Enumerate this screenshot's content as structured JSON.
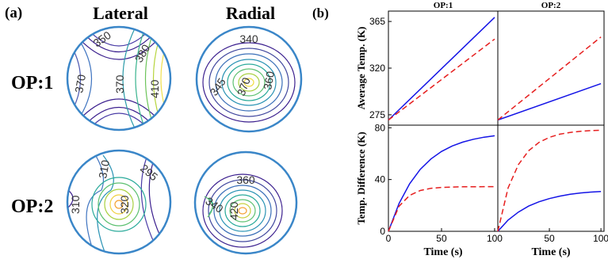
{
  "panel_a": {
    "label": "(a)",
    "col_headers": [
      "Lateral",
      "Radial"
    ],
    "row_headers": [
      "OP:1",
      "OP:2"
    ],
    "contour_labels": {
      "op1_lateral": [
        "350",
        "380",
        "370",
        "370",
        "410"
      ],
      "op1_radial": [
        "340",
        "345",
        "370",
        "360"
      ],
      "op2_lateral": [
        "310",
        "295",
        "310",
        "320"
      ],
      "op2_radial": [
        "360",
        "340",
        "420"
      ]
    }
  },
  "panel_b": {
    "label": "(b)"
  },
  "colors": {
    "blue_series": "#1414e6",
    "red_series": "#e61e1e",
    "circle_outline": "#3a86c8"
  },
  "chart_data": [
    {
      "type": "line",
      "title": "OP:1",
      "ylabel": "Average Temp. (K)",
      "ylim": [
        265,
        375
      ],
      "xlim": [
        0,
        103
      ],
      "yticks": [
        275,
        320,
        365
      ],
      "series": [
        {
          "color": "blue",
          "style": "solid",
          "x": [
            0,
            100
          ],
          "y": [
            270,
            369
          ]
        },
        {
          "color": "red",
          "style": "dashed",
          "x": [
            0,
            100
          ],
          "y": [
            270,
            348
          ]
        }
      ]
    },
    {
      "type": "line",
      "title": "OP:2",
      "ylim": [
        265,
        375
      ],
      "xlim": [
        0,
        103
      ],
      "series": [
        {
          "color": "blue",
          "style": "solid",
          "x": [
            0,
            100
          ],
          "y": [
            270,
            305
          ]
        },
        {
          "color": "red",
          "style": "dashed",
          "x": [
            0,
            100
          ],
          "y": [
            270,
            350
          ]
        }
      ]
    },
    {
      "type": "line",
      "ylabel": "Temp. Difference (K)",
      "xlabel": "Time (s)",
      "ylim": [
        0,
        82
      ],
      "xlim": [
        0,
        103
      ],
      "yticks": [
        0,
        40,
        80
      ],
      "xticks": [
        0,
        50,
        100
      ],
      "series": [
        {
          "color": "blue",
          "style": "solid",
          "x": [
            0,
            10,
            20,
            30,
            40,
            50,
            60,
            70,
            80,
            90,
            100
          ],
          "y": [
            0,
            21.5,
            36.8,
            47.9,
            55.9,
            61.7,
            65.9,
            68.9,
            71.1,
            72.7,
            73.8
          ]
        },
        {
          "color": "red",
          "style": "dashed",
          "x": [
            0,
            10,
            20,
            30,
            40,
            50,
            60,
            70,
            80,
            90,
            100
          ],
          "y": [
            0,
            19.4,
            27.8,
            31.5,
            33.2,
            33.9,
            34.2,
            34.4,
            34.4,
            34.5,
            34.5
          ]
        }
      ]
    },
    {
      "type": "line",
      "xlabel": "Time (s)",
      "ylim": [
        0,
        82
      ],
      "xlim": [
        0,
        103
      ],
      "xticks": [
        50,
        100
      ],
      "series": [
        {
          "color": "blue",
          "style": "solid",
          "x": [
            0,
            10,
            20,
            30,
            40,
            50,
            60,
            70,
            80,
            90,
            100
          ],
          "y": [
            0,
            8.7,
            14.9,
            19.5,
            22.8,
            25.3,
            27.2,
            28.6,
            29.6,
            30.3,
            30.8
          ]
        },
        {
          "color": "red",
          "style": "dashed",
          "x": [
            0,
            10,
            20,
            30,
            40,
            50,
            60,
            70,
            80,
            90,
            100
          ],
          "y": [
            0,
            33.6,
            51.6,
            62.3,
            68.7,
            72.6,
            75.0,
            76.4,
            77.3,
            77.8,
            78.1
          ]
        }
      ]
    }
  ]
}
